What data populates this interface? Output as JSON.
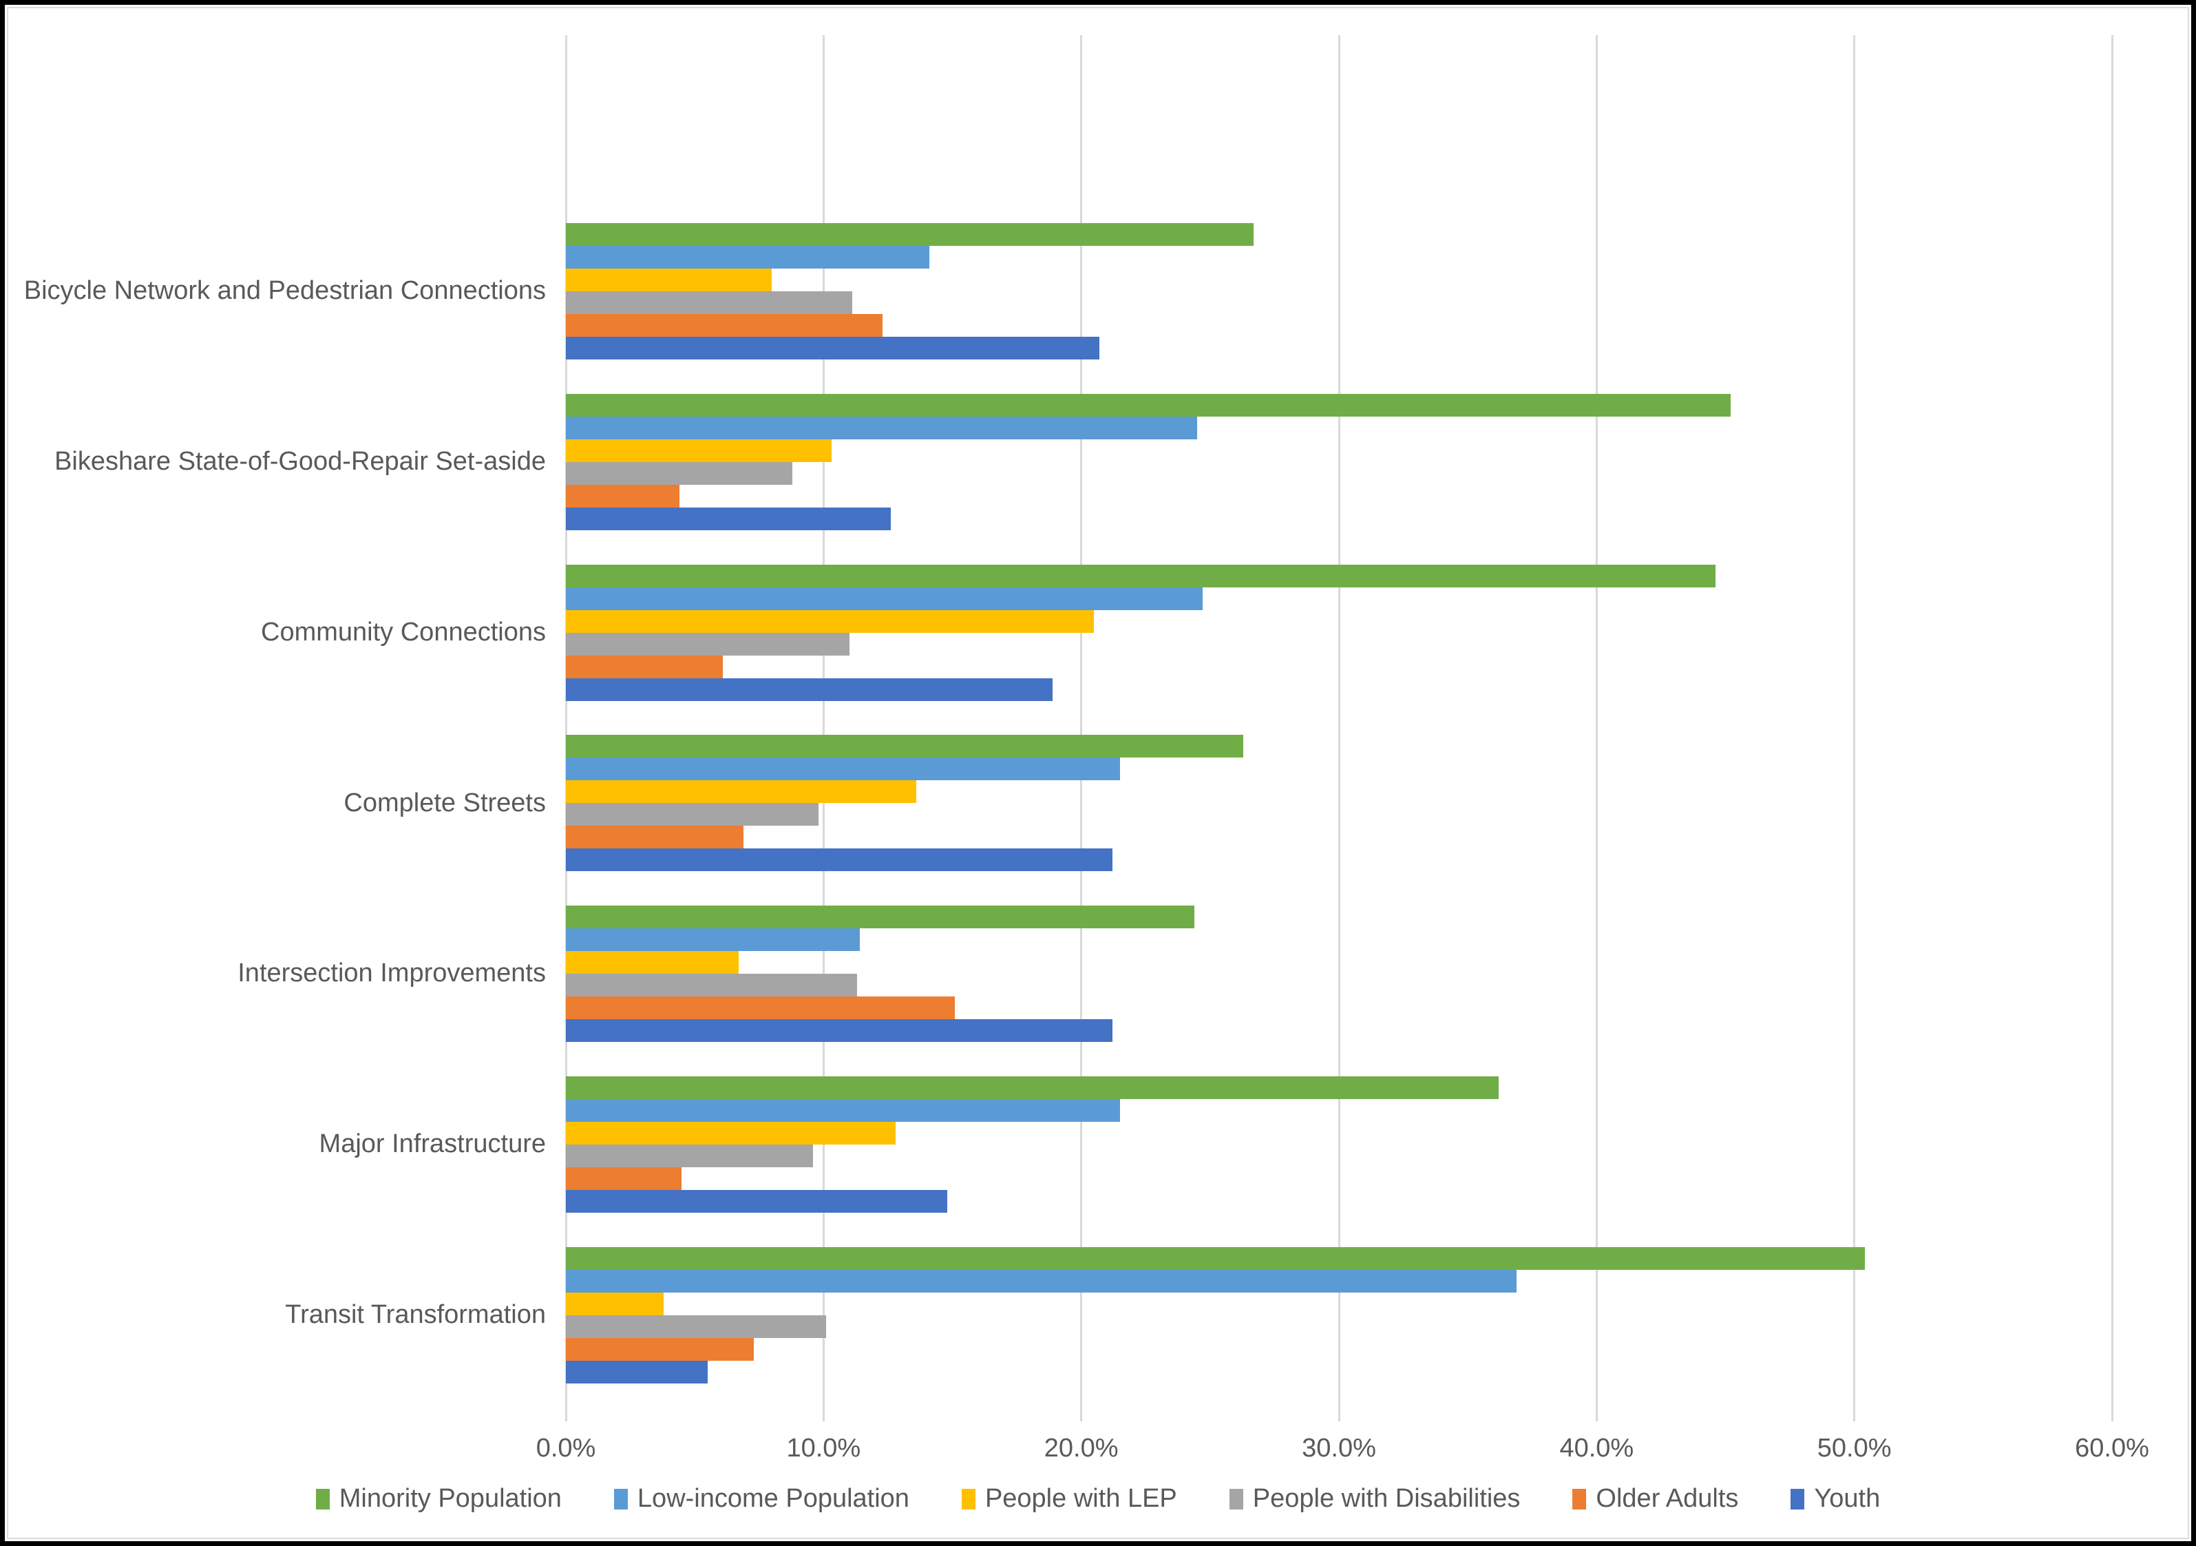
{
  "chart_data": {
    "type": "bar",
    "orientation": "horizontal",
    "title": "",
    "categories": [
      "Bicycle Network and Pedestrian Connections",
      "Bikeshare State-of-Good-Repair Set-aside",
      "Community Connections",
      "Complete Streets",
      "Intersection Improvements",
      "Major Infrastructure",
      "Transit Transformation"
    ],
    "series": [
      {
        "name": "Minority Population",
        "color": "#70AD47",
        "values": [
          26.7,
          45.2,
          44.6,
          26.3,
          24.4,
          36.2,
          50.4
        ]
      },
      {
        "name": "Low-income Population",
        "color": "#5B9BD5",
        "values": [
          14.1,
          24.5,
          24.7,
          21.5,
          11.4,
          21.5,
          36.9
        ]
      },
      {
        "name": "People with LEP",
        "color": "#FFC000",
        "values": [
          8.0,
          10.3,
          20.5,
          13.6,
          6.7,
          12.8,
          3.8
        ]
      },
      {
        "name": "People with Disabilities",
        "color": "#A5A5A5",
        "values": [
          11.1,
          8.8,
          11.0,
          9.8,
          11.3,
          9.6,
          10.1
        ]
      },
      {
        "name": "Older Adults",
        "color": "#ED7D31",
        "values": [
          12.3,
          4.4,
          6.1,
          6.9,
          15.1,
          4.5,
          7.3
        ]
      },
      {
        "name": "Youth",
        "color": "#4472C4",
        "values": [
          20.7,
          12.6,
          18.9,
          21.2,
          21.2,
          14.8,
          5.5
        ]
      }
    ],
    "x_axis": {
      "ticks": [
        "0.0%",
        "10.0%",
        "20.0%",
        "30.0%",
        "40.0%",
        "50.0%",
        "60.0%"
      ],
      "min": 0,
      "max": 60,
      "unit": "%"
    },
    "legend_position": "bottom",
    "grid": true,
    "empty_top_band": true
  },
  "colors": {
    "text": "#595959",
    "gridline": "#D9D9D9",
    "background": "#FFFFFF",
    "frame": "#000000"
  }
}
